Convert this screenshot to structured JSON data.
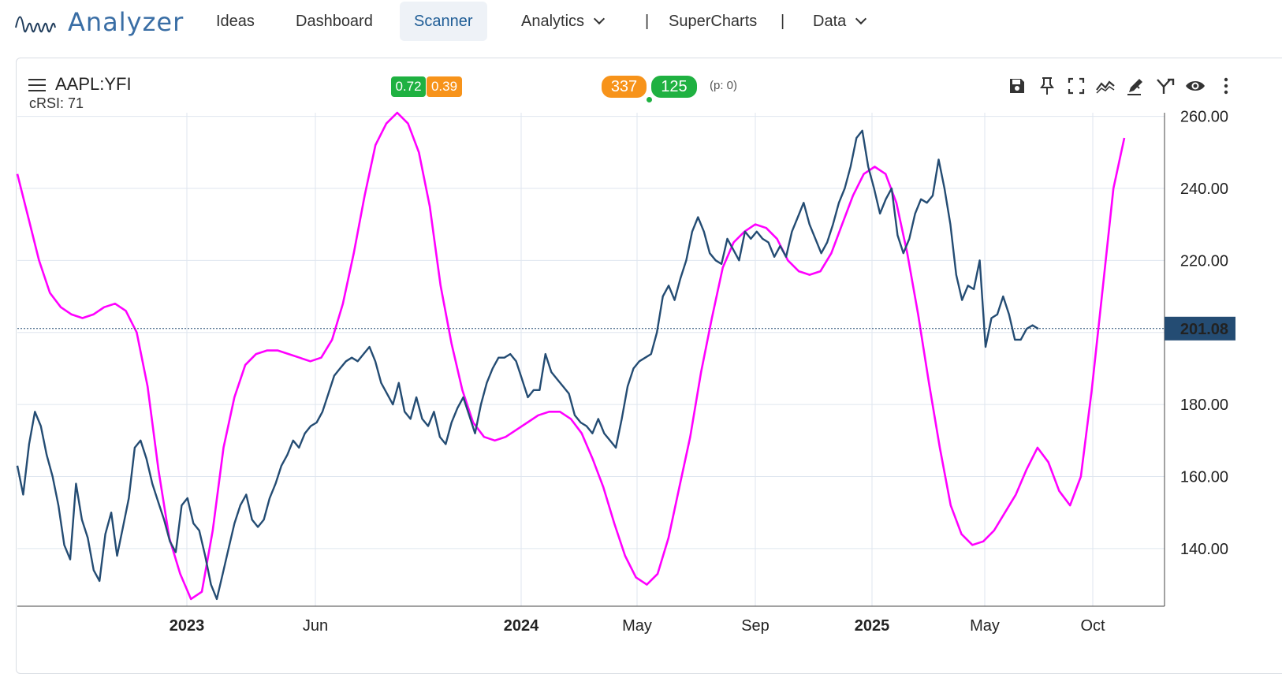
{
  "nav": {
    "logo_text": "Analyzer",
    "items": [
      {
        "label": "Ideas"
      },
      {
        "label": "Dashboard"
      },
      {
        "label": "Scanner"
      },
      {
        "label": "Analytics"
      },
      {
        "label": "SuperCharts"
      },
      {
        "label": "Data"
      }
    ],
    "separator": "|"
  },
  "chart_header": {
    "symbol": "AAPL:YFI",
    "indicator": "cRSI: 71",
    "badges_left": [
      "0.72",
      "0.39"
    ],
    "badges_right": [
      "337",
      "125"
    ],
    "p_value": "(p: 0)",
    "colors": {
      "green": "#1fb141",
      "orange": "#f7931a",
      "price_line": "#244c73",
      "cycle_line": "#ff00ff",
      "last_price_bg": "#244c73"
    }
  },
  "toolbar_icons": [
    "save-icon",
    "pin-icon",
    "fullscreen-icon",
    "trend-icon",
    "draw-icon",
    "merge-icon",
    "eye-icon",
    "more-vertical-icon"
  ],
  "chart_data": {
    "type": "line",
    "y_axis": {
      "ticks": [
        "140.00",
        "160.00",
        "180.00",
        "200.00",
        "220.00",
        "240.00",
        "260.00"
      ],
      "range": [
        124,
        261
      ]
    },
    "x_axis": {
      "ticks": [
        {
          "label": "2023",
          "bold": true
        },
        {
          "label": "Jun",
          "bold": false
        },
        {
          "label": "2024",
          "bold": true
        },
        {
          "label": "May",
          "bold": false
        },
        {
          "label": "Sep",
          "bold": false
        },
        {
          "label": "2025",
          "bold": true
        },
        {
          "label": "May",
          "bold": false
        },
        {
          "label": "Oct",
          "bold": false
        }
      ]
    },
    "last_price": "201.08",
    "series": [
      {
        "values": [
          163,
          155,
          169,
          178,
          174,
          166,
          160,
          152,
          141,
          137,
          158,
          148,
          143,
          134,
          131,
          144,
          150,
          138,
          146,
          154,
          168,
          170,
          165,
          158,
          153,
          148,
          142,
          139,
          152,
          154,
          147,
          145,
          138,
          130,
          126,
          133,
          140,
          147,
          152,
          155,
          148,
          146,
          148,
          154,
          158,
          163,
          166,
          170,
          168,
          172,
          174,
          175,
          178,
          183,
          188,
          190,
          192,
          193,
          192,
          194,
          196,
          192,
          186,
          183,
          180,
          186,
          178,
          176,
          182,
          176,
          174,
          178,
          171,
          169,
          175,
          179,
          182,
          177,
          172,
          180,
          186,
          190,
          193,
          193,
          194,
          192,
          187,
          182,
          184,
          184,
          194,
          189,
          187,
          185,
          183,
          177,
          175,
          174,
          172,
          176,
          172,
          170,
          168,
          176,
          185,
          190,
          192,
          193,
          194,
          200,
          210,
          213,
          209,
          215,
          220,
          228,
          232,
          228,
          222,
          220,
          219,
          226,
          223,
          220,
          228,
          226,
          228,
          226,
          225,
          221,
          224,
          221,
          228,
          232,
          236,
          230,
          226,
          222,
          225,
          230,
          236,
          240,
          246,
          254,
          256,
          246,
          240,
          233,
          237,
          240,
          227,
          222,
          226,
          233,
          237,
          236,
          238,
          248,
          240,
          230,
          216,
          209,
          213,
          212,
          220,
          196,
          204,
          205,
          210,
          205,
          198,
          198,
          201,
          202,
          201
        ]
      },
      {
        "values": [
          244,
          232,
          220,
          211,
          207,
          205,
          204,
          205,
          207,
          208,
          206,
          200,
          185,
          162,
          143,
          133,
          126,
          128,
          145,
          168,
          182,
          191,
          194,
          195,
          195,
          194,
          193,
          192,
          193,
          198,
          208,
          222,
          238,
          252,
          258,
          261,
          258,
          250,
          235,
          213,
          197,
          184,
          175,
          171,
          170,
          171,
          173,
          175,
          177,
          178,
          178,
          176,
          172,
          165,
          157,
          147,
          138,
          132,
          130,
          133,
          143,
          157,
          171,
          189,
          204,
          218,
          225,
          228,
          230,
          229,
          226,
          220,
          217,
          216,
          217,
          222,
          230,
          238,
          244,
          246,
          244,
          236,
          222,
          205,
          186,
          168,
          152,
          144,
          141,
          142,
          145,
          150,
          155,
          162,
          168,
          164,
          156,
          152,
          160,
          184,
          212,
          240,
          254
        ]
      }
    ]
  }
}
